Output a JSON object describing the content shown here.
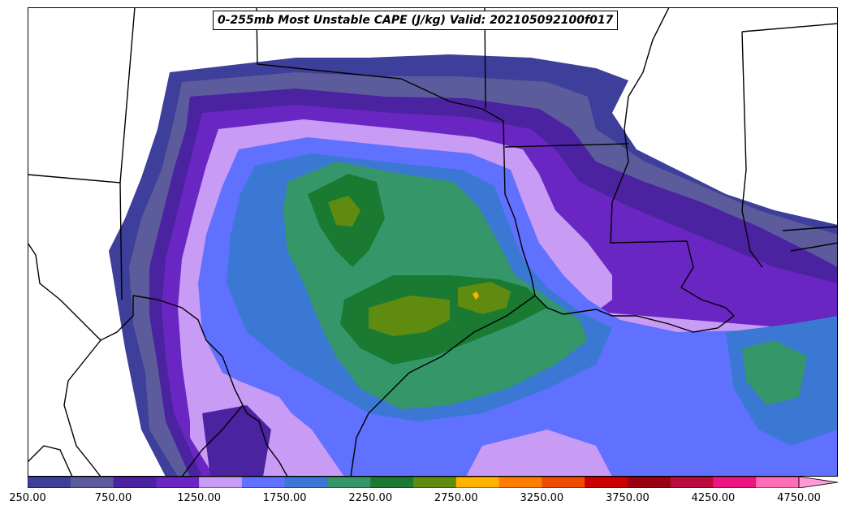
{
  "title": "0-255mb Most Unstable CAPE (J/kg) Valid: 202105092100f017",
  "colorbar": {
    "colors": [
      "#3d3f9a",
      "#5c5c9c",
      "#4b22a0",
      "#6a26c2",
      "#c89bf5",
      "#6070ff",
      "#3a78d4",
      "#35966a",
      "#1a7a32",
      "#5f8c10",
      "#ffb300",
      "#ff7d00",
      "#ee4a00",
      "#cc0000",
      "#990012",
      "#bb0a3c",
      "#ee1481",
      "#ff6cb8"
    ],
    "extend_color": "#ff9ad4",
    "tick_labels": [
      "250.00",
      "750.00",
      "1250.00",
      "1750.00",
      "2250.00",
      "2750.00",
      "3250.00",
      "3750.00",
      "4250.00",
      "4750.00"
    ]
  },
  "map": {
    "field_colors": {
      "bg": "#ffffff",
      "c1": "#3d3f9a",
      "c2": "#5c5c9c",
      "c3": "#4b22a0",
      "c4": "#6a26c2",
      "c5": "#c89bf5",
      "c6": "#6070ff",
      "c7": "#3a78d4",
      "c8": "#35966a",
      "c9": "#1a7a32",
      "c10": "#5f8c10",
      "c11": "#ffb300"
    }
  }
}
